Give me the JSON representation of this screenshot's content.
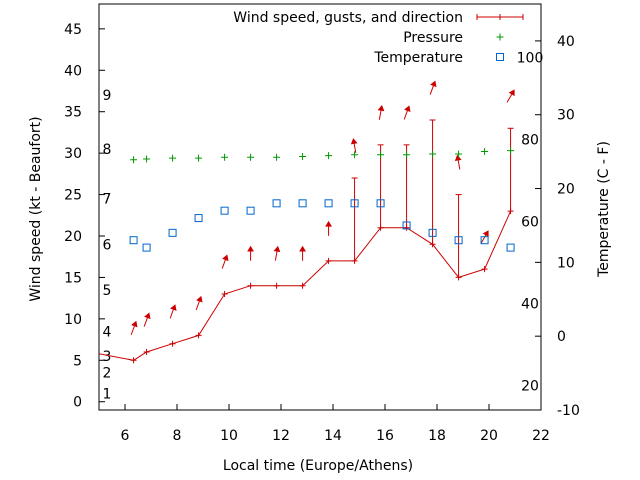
{
  "chart_data": {
    "type": "line",
    "xlabel": "Local time (Europe/Athens)",
    "ylabel_left": "Wind speed (kt - Beaufort)",
    "ylabel_right": "Temperature (C - F)",
    "x_range": [
      5,
      22
    ],
    "x_ticks": [
      "6",
      "8",
      "10",
      "12",
      "14",
      "16",
      "18",
      "20",
      "22"
    ],
    "y_left_range": [
      -1,
      48
    ],
    "y_left_ticks": [
      "0",
      "5",
      "10",
      "15",
      "20",
      "25",
      "30",
      "35",
      "40",
      "45"
    ],
    "y_right_celsius_range": [
      -10,
      45
    ],
    "y_right_celsius_ticks": [
      "-10",
      "0",
      "10",
      "20",
      "30",
      "40"
    ],
    "fahrenheit_labels": [
      {
        "label": "20",
        "value_f": 20
      },
      {
        "label": "40",
        "value_f": 40
      },
      {
        "label": "60",
        "value_f": 60
      },
      {
        "label": "80",
        "value_f": 80
      },
      {
        "label": "100",
        "value_f": 100
      }
    ],
    "beaufort_labels": [
      {
        "label": "1",
        "kt": 1
      },
      {
        "label": "2",
        "kt": 3.5
      },
      {
        "label": "3",
        "kt": 5.5
      },
      {
        "label": "4",
        "kt": 8.5
      },
      {
        "label": "5",
        "kt": 13.5
      },
      {
        "label": "6",
        "kt": 19
      },
      {
        "label": "7",
        "kt": 24.5
      },
      {
        "label": "8",
        "kt": 30.5
      },
      {
        "label": "9",
        "kt": 37
      }
    ],
    "legend": [
      "Wind speed, gusts, and direction",
      "Pressure",
      "Temperature"
    ],
    "legend_position": "top-right",
    "grid": false,
    "series": [
      {
        "name": "Wind speed, gusts, and direction",
        "color": "#cc0000",
        "points": [
          {
            "x": 4.8,
            "speed": 5.9
          },
          {
            "x": 6.33,
            "speed": 5,
            "gust": 5,
            "dir": 200
          },
          {
            "x": 6.83,
            "speed": 6,
            "gust": 6,
            "dir": 200
          },
          {
            "x": 7.83,
            "speed": 7,
            "gust": 7,
            "dir": 200
          },
          {
            "x": 8.83,
            "speed": 8,
            "gust": 8,
            "dir": 200
          },
          {
            "x": 9.83,
            "speed": 13,
            "gust": 13,
            "dir": 200
          },
          {
            "x": 10.83,
            "speed": 14,
            "gust": 14,
            "dir": 180
          },
          {
            "x": 11.83,
            "speed": 14,
            "gust": 14,
            "dir": 190
          },
          {
            "x": 12.83,
            "speed": 14,
            "gust": 14,
            "dir": 180
          },
          {
            "x": 13.83,
            "speed": 17,
            "gust": 17,
            "dir": 180
          },
          {
            "x": 14.83,
            "speed": 17,
            "gust": 27,
            "dir": 170
          },
          {
            "x": 15.83,
            "speed": 21,
            "gust": 31,
            "dir": 190
          },
          {
            "x": 16.83,
            "speed": 21,
            "gust": 31,
            "dir": 200
          },
          {
            "x": 17.83,
            "speed": 19,
            "gust": 34,
            "dir": 200
          },
          {
            "x": 18.83,
            "speed": 15,
            "gust": 25,
            "dir": 170
          },
          {
            "x": 19.83,
            "speed": 16,
            "gust": 16,
            "dir": 210
          },
          {
            "x": 20.83,
            "speed": 23,
            "gust": 33,
            "dir": 210
          }
        ]
      },
      {
        "name": "Pressure",
        "color": "#009900",
        "points": [
          {
            "x": 6.33,
            "y": 29.2
          },
          {
            "x": 6.83,
            "y": 29.3
          },
          {
            "x": 7.83,
            "y": 29.4
          },
          {
            "x": 8.83,
            "y": 29.4
          },
          {
            "x": 9.83,
            "y": 29.5
          },
          {
            "x": 10.83,
            "y": 29.5
          },
          {
            "x": 11.83,
            "y": 29.5
          },
          {
            "x": 12.83,
            "y": 29.6
          },
          {
            "x": 13.83,
            "y": 29.7
          },
          {
            "x": 14.83,
            "y": 29.8
          },
          {
            "x": 15.83,
            "y": 29.8
          },
          {
            "x": 16.83,
            "y": 29.8
          },
          {
            "x": 17.83,
            "y": 29.9
          },
          {
            "x": 18.83,
            "y": 29.9
          },
          {
            "x": 19.83,
            "y": 30.2
          },
          {
            "x": 20.83,
            "y": 30.3
          }
        ]
      },
      {
        "name": "Temperature",
        "color": "#0066cc",
        "points_celsius": [
          {
            "x": 6.33,
            "y": 13
          },
          {
            "x": 6.83,
            "y": 12
          },
          {
            "x": 7.83,
            "y": 14
          },
          {
            "x": 8.83,
            "y": 16
          },
          {
            "x": 9.83,
            "y": 17
          },
          {
            "x": 10.83,
            "y": 17
          },
          {
            "x": 11.83,
            "y": 18
          },
          {
            "x": 12.83,
            "y": 18
          },
          {
            "x": 13.83,
            "y": 18
          },
          {
            "x": 14.83,
            "y": 18
          },
          {
            "x": 15.83,
            "y": 18
          },
          {
            "x": 16.83,
            "y": 15
          },
          {
            "x": 17.83,
            "y": 14
          },
          {
            "x": 18.83,
            "y": 13
          },
          {
            "x": 19.83,
            "y": 13
          },
          {
            "x": 20.83,
            "y": 12
          }
        ]
      }
    ]
  }
}
